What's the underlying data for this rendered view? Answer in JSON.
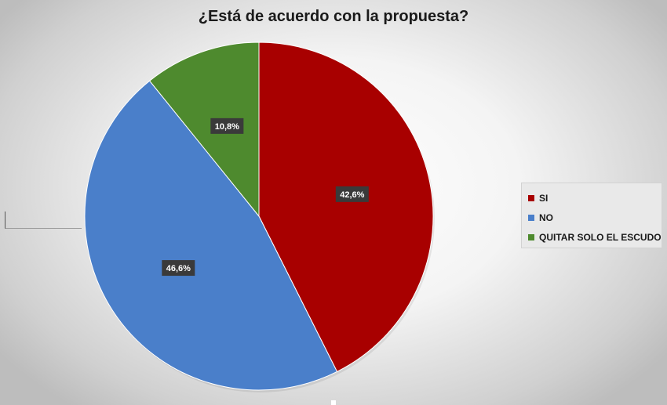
{
  "chart_data": {
    "type": "pie",
    "title": "¿Está de acuerdo con la propuesta?",
    "categories": [
      "SI",
      "NO",
      "QUITAR SOLO EL ESCUDO"
    ],
    "values": [
      42.6,
      46.6,
      10.8
    ],
    "data_labels": [
      "42,6%",
      "46,6%",
      "10,8%"
    ],
    "colors": [
      "#a80000",
      "#4a7fca",
      "#4e8a2e"
    ],
    "start": "12 o'clock",
    "direction": "clockwise",
    "legend_position": "right",
    "data_label_style": "dark box, white bold text"
  }
}
